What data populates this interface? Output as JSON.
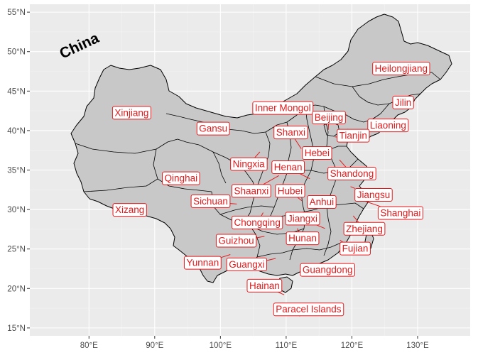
{
  "title": "China",
  "colors": {
    "panel_background": "#ebebeb",
    "grid": "#ffffff",
    "land_fill": "#c8c8c8",
    "border": "#000000",
    "label": "#e31a1c"
  },
  "axes": {
    "x_ticks": [
      "80°E",
      "90°E",
      "100°E",
      "110°E",
      "120°E",
      "130°E"
    ],
    "y_ticks": [
      "15°N",
      "20°N",
      "25°N",
      "30°N",
      "35°N",
      "40°N",
      "45°N",
      "50°N",
      "55°N"
    ]
  },
  "chart_data": {
    "type": "map",
    "xlim": [
      71,
      138
    ],
    "ylim": [
      14,
      56
    ],
    "x_tick_values": [
      80,
      90,
      100,
      110,
      120,
      130
    ],
    "y_tick_values": [
      15,
      20,
      25,
      30,
      35,
      40,
      45,
      50,
      55
    ],
    "labels": [
      {
        "name": "Heilongjiang",
        "lon": 127.5,
        "lat": 47.9,
        "anchor_lon": 127.5,
        "anchor_lat": 47.9
      },
      {
        "name": "Jilin",
        "lon": 127.8,
        "lat": 43.6,
        "anchor_lon": 126.3,
        "anchor_lat": 42.9
      },
      {
        "name": "Liaoning",
        "lon": 125.5,
        "lat": 40.7,
        "anchor_lon": 123.2,
        "anchor_lat": 41.4
      },
      {
        "name": "Inner Mongol",
        "lon": 109.5,
        "lat": 42.9,
        "anchor_lon": 109.5,
        "anchor_lat": 42.9
      },
      {
        "name": "Xinjiang",
        "lon": 86.5,
        "lat": 42.3,
        "anchor_lon": 86.5,
        "anchor_lat": 42.3
      },
      {
        "name": "Beijing",
        "lon": 116.5,
        "lat": 41.7,
        "anchor_lon": 116.4,
        "anchor_lat": 40.1
      },
      {
        "name": "Tianjin",
        "lon": 120.2,
        "lat": 39.4,
        "anchor_lon": 117.4,
        "anchor_lat": 39.2
      },
      {
        "name": "Gansu",
        "lon": 98.9,
        "lat": 40.3,
        "anchor_lon": 98.9,
        "anchor_lat": 40.3
      },
      {
        "name": "Shanxi",
        "lon": 110.7,
        "lat": 39.8,
        "anchor_lon": 112.3,
        "anchor_lat": 37.7
      },
      {
        "name": "Hebei",
        "lon": 114.7,
        "lat": 37.2,
        "anchor_lon": 114.7,
        "anchor_lat": 37.2
      },
      {
        "name": "Ningxia",
        "lon": 104.3,
        "lat": 35.8,
        "anchor_lon": 106.0,
        "anchor_lat": 37.3
      },
      {
        "name": "Henan",
        "lon": 110.3,
        "lat": 35.4,
        "anchor_lon": 113.6,
        "anchor_lat": 33.9
      },
      {
        "name": "Shandong",
        "lon": 120.0,
        "lat": 34.6,
        "anchor_lon": 118.1,
        "anchor_lat": 36.3
      },
      {
        "name": "Qinghai",
        "lon": 94.0,
        "lat": 34.0,
        "anchor_lon": 94.0,
        "anchor_lat": 34.0
      },
      {
        "name": "Shaanxi",
        "lon": 104.7,
        "lat": 32.4,
        "anchor_lon": 108.9,
        "anchor_lat": 34.3
      },
      {
        "name": "Hubei",
        "lon": 110.6,
        "lat": 32.4,
        "anchor_lon": 112.4,
        "anchor_lat": 31.1
      },
      {
        "name": "Jiangsu",
        "lon": 123.3,
        "lat": 31.9,
        "anchor_lon": 119.8,
        "anchor_lat": 32.9
      },
      {
        "name": "Sichuan",
        "lon": 98.5,
        "lat": 31.1,
        "anchor_lon": 102.5,
        "anchor_lat": 30.7
      },
      {
        "name": "Anhui",
        "lon": 115.4,
        "lat": 31.0,
        "anchor_lon": 117.2,
        "anchor_lat": 31.8
      },
      {
        "name": "Xizang",
        "lon": 86.2,
        "lat": 30.0,
        "anchor_lon": 86.2,
        "anchor_lat": 30.0
      },
      {
        "name": "Shanghai",
        "lon": 127.4,
        "lat": 29.6,
        "anchor_lon": 121.5,
        "anchor_lat": 31.2
      },
      {
        "name": "Chongqing",
        "lon": 105.6,
        "lat": 28.4,
        "anchor_lon": 106.5,
        "anchor_lat": 29.6
      },
      {
        "name": "Jiangxi",
        "lon": 112.5,
        "lat": 28.9,
        "anchor_lon": 115.9,
        "anchor_lat": 27.6
      },
      {
        "name": "Zhejiang",
        "lon": 121.9,
        "lat": 27.6,
        "anchor_lon": 120.2,
        "anchor_lat": 29.2
      },
      {
        "name": "Hunan",
        "lon": 112.5,
        "lat": 26.4,
        "anchor_lon": 111.7,
        "anchor_lat": 27.6
      },
      {
        "name": "Guizhou",
        "lon": 102.4,
        "lat": 26.1,
        "anchor_lon": 106.7,
        "anchor_lat": 26.6
      },
      {
        "name": "Fujian",
        "lon": 120.5,
        "lat": 25.1,
        "anchor_lon": 118.2,
        "anchor_lat": 26.1
      },
      {
        "name": "Yunnan",
        "lon": 97.3,
        "lat": 23.3,
        "anchor_lon": 101.5,
        "anchor_lat": 24.3
      },
      {
        "name": "Guangxi",
        "lon": 104.0,
        "lat": 23.1,
        "anchor_lon": 108.4,
        "anchor_lat": 23.8
      },
      {
        "name": "Guangdong",
        "lon": 116.3,
        "lat": 22.4,
        "anchor_lon": 113.4,
        "anchor_lat": 23.2
      },
      {
        "name": "Hainan",
        "lon": 106.7,
        "lat": 20.4,
        "anchor_lon": 109.7,
        "anchor_lat": 19.2
      },
      {
        "name": "Paracel Islands",
        "lon": 113.4,
        "lat": 17.4,
        "anchor_lon": 112.0,
        "anchor_lat": 16.5
      }
    ]
  }
}
